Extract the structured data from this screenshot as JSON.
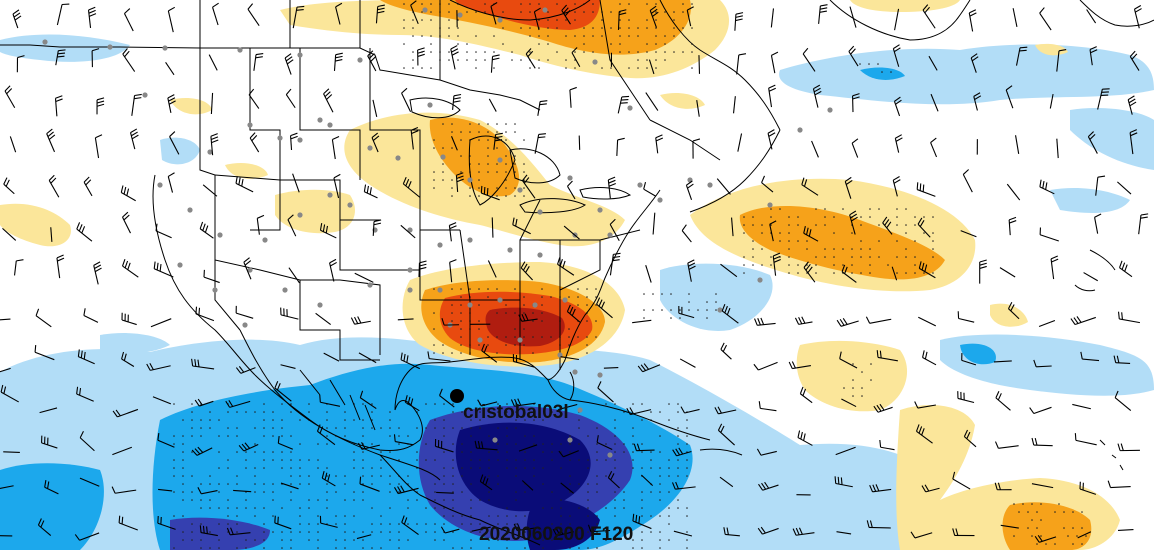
{
  "storm": {
    "name": "cristobal03l"
  },
  "valid_time": {
    "label": "2020060200 F120"
  },
  "colors": {
    "warm_light": "#fbe69a",
    "warm_mid": "#f6a21a",
    "warm_strong": "#e84a0f",
    "warm_max": "#b01d10",
    "cool_light": "#b2ddf7",
    "cool_mid": "#1ca8ec",
    "cool_strong": "#3540b0",
    "cool_max": "#0a0c78",
    "border": "#000000",
    "station": "#888888",
    "storm_marker": "#000000"
  },
  "icons": {
    "storm_marker": "filled-circle",
    "station": "small-dot",
    "wind": "wind-barb"
  }
}
